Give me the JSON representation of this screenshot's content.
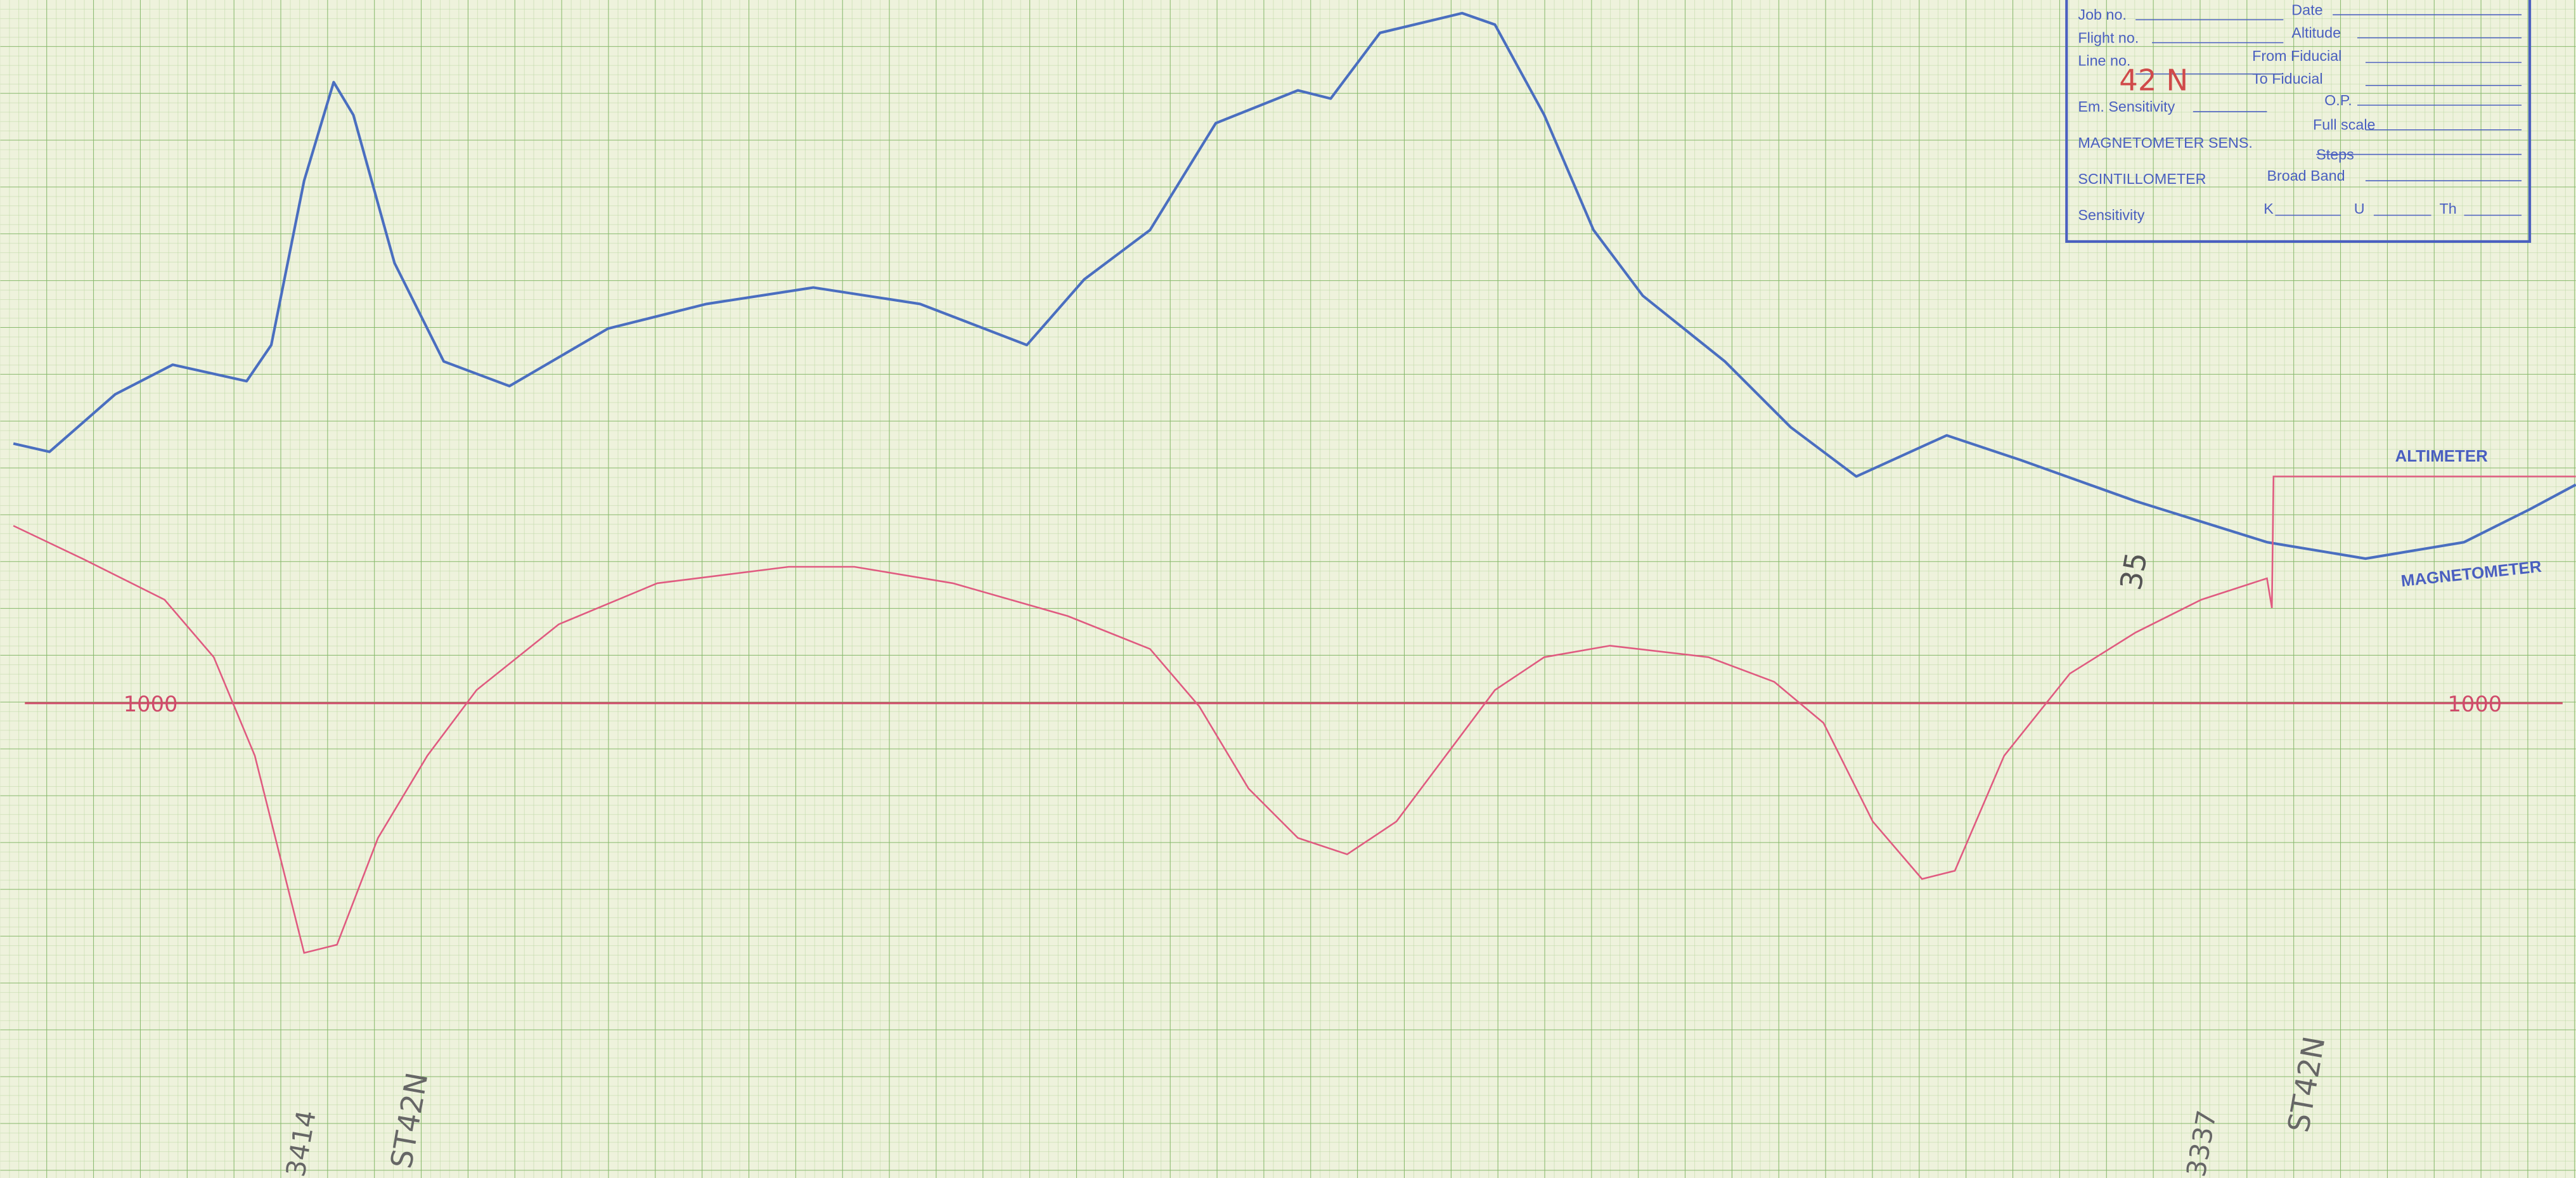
{
  "stamp": {
    "job_no": "Job no.",
    "date": "Date",
    "flight_no": "Flight no.",
    "altitude": "Altitude",
    "line_no": "Line no.",
    "from_fiducial": "From Fiducial",
    "line_value": "42 N",
    "to_fiducial": "To Fiducial",
    "em_sensitivity": "Em. Sensitivity",
    "op": "O.P.",
    "magnetometer_sens": "MAGNETOMETER SENS.",
    "full_scale": "Full scale",
    "steps": "Steps",
    "scintillometer": "SCINTILLOMETER",
    "broad_band": "Broad Band",
    "sensitivity": "Sensitivity",
    "k": "K",
    "u": "U",
    "th": "Th"
  },
  "trace_labels": {
    "altimeter": "ALTIMETER",
    "magnetometer": "MAGNETOMETER"
  },
  "annotations": {
    "reference_left": "1000",
    "reference_right": "1000",
    "mark_35": "35",
    "fiducial_left": "3414",
    "line_left": "ST42N",
    "fiducial_right": "3337",
    "line_right": "ST42N"
  }
}
